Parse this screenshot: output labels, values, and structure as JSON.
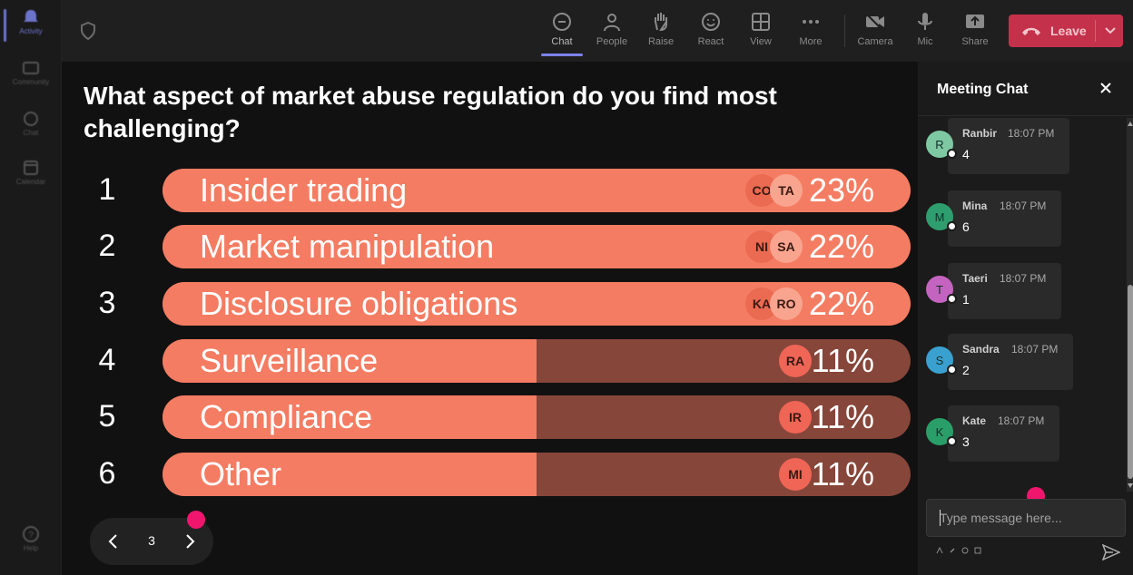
{
  "rail": {
    "items": [
      {
        "label": "Activity",
        "icon": "bell-icon",
        "active": true
      },
      {
        "label": "Community",
        "icon": "community-icon"
      },
      {
        "label": "Chat",
        "icon": "chat-icon"
      },
      {
        "label": "Calendar",
        "icon": "calendar-icon"
      },
      {
        "label": "Help",
        "icon": "help-icon"
      }
    ]
  },
  "toolbar": {
    "chat": "Chat",
    "people": "People",
    "raise": "Raise",
    "react": "React",
    "view": "View",
    "more": "More",
    "camera": "Camera",
    "mic": "Mic",
    "share": "Share",
    "leave": "Leave"
  },
  "poll": {
    "question": "What aspect of market abuse regulation do you find most challenging?",
    "options": [
      {
        "num": "1",
        "label": "Insider trading",
        "pct": "23%",
        "fill": 1.0,
        "avatars": [
          "CO",
          "TA"
        ]
      },
      {
        "num": "2",
        "label": "Market manipulation",
        "pct": "22%",
        "fill": 1.0,
        "avatars": [
          "NI",
          "SA"
        ]
      },
      {
        "num": "3",
        "label": "Disclosure obligations",
        "pct": "22%",
        "fill": 1.0,
        "avatars": [
          "KA",
          "RO"
        ]
      },
      {
        "num": "4",
        "label": "Surveillance",
        "pct": "11%",
        "fill": 0.5,
        "avatars": [
          "RA"
        ]
      },
      {
        "num": "5",
        "label": "Compliance",
        "pct": "11%",
        "fill": 0.5,
        "avatars": [
          "IR"
        ]
      },
      {
        "num": "6",
        "label": "Other",
        "pct": "11%",
        "fill": 0.5,
        "avatars": [
          "MI"
        ]
      }
    ],
    "colors": {
      "fill": "#f47c62",
      "track": "#87463a"
    }
  },
  "pager": {
    "page": "3"
  },
  "chat": {
    "title": "Meeting Chat",
    "messages": [
      {
        "initial": "R",
        "name": "Ranbir",
        "time": "18:07 PM",
        "text": "4",
        "color": "#7ec9a4"
      },
      {
        "initial": "M",
        "name": "Mina",
        "time": "18:07 PM",
        "text": "6",
        "color": "#2e9e6e"
      },
      {
        "initial": "T",
        "name": "Taeri",
        "time": "18:07 PM",
        "text": "1",
        "color": "#c464c0"
      },
      {
        "initial": "S",
        "name": "Sandra",
        "time": "18:07 PM",
        "text": "2",
        "color": "#3aa0d0"
      },
      {
        "initial": "K",
        "name": "Kate",
        "time": "18:07 PM",
        "text": "3",
        "color": "#2a9e68"
      }
    ],
    "input_placeholder": "Type message here..."
  }
}
